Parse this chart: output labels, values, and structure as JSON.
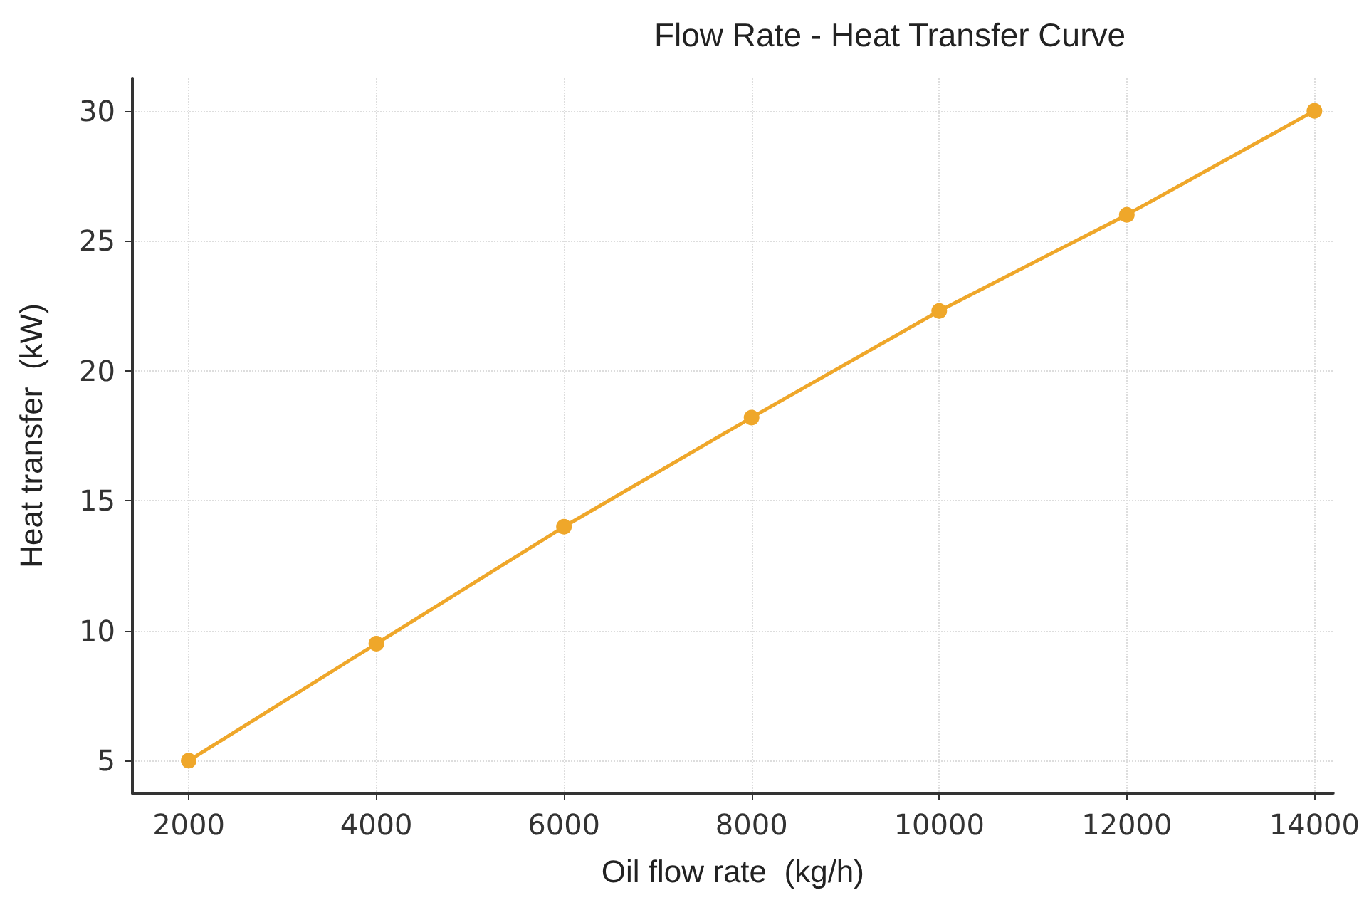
{
  "chart_data": {
    "type": "line",
    "title": "Flow Rate - Heat Transfer Curve",
    "xlabel": "Oil flow rate  (kg/h)",
    "ylabel": "Heat transfer  (kW)",
    "x": [
      2000,
      4000,
      6000,
      8000,
      10000,
      12000,
      14000
    ],
    "series": [
      {
        "color": "#efa72a",
        "values": [
          5,
          9.5,
          14,
          18.2,
          22.3,
          26,
          30
        ]
      }
    ],
    "xlim": [
      1400,
      14200
    ],
    "xticks": [
      2000,
      4000,
      6000,
      8000,
      10000,
      12000,
      14000
    ],
    "ylim": [
      3.75,
      31.25
    ],
    "yticks": [
      5,
      10,
      15,
      20,
      25,
      30
    ],
    "grid": true,
    "marker": "circle",
    "line_style": "solid"
  }
}
